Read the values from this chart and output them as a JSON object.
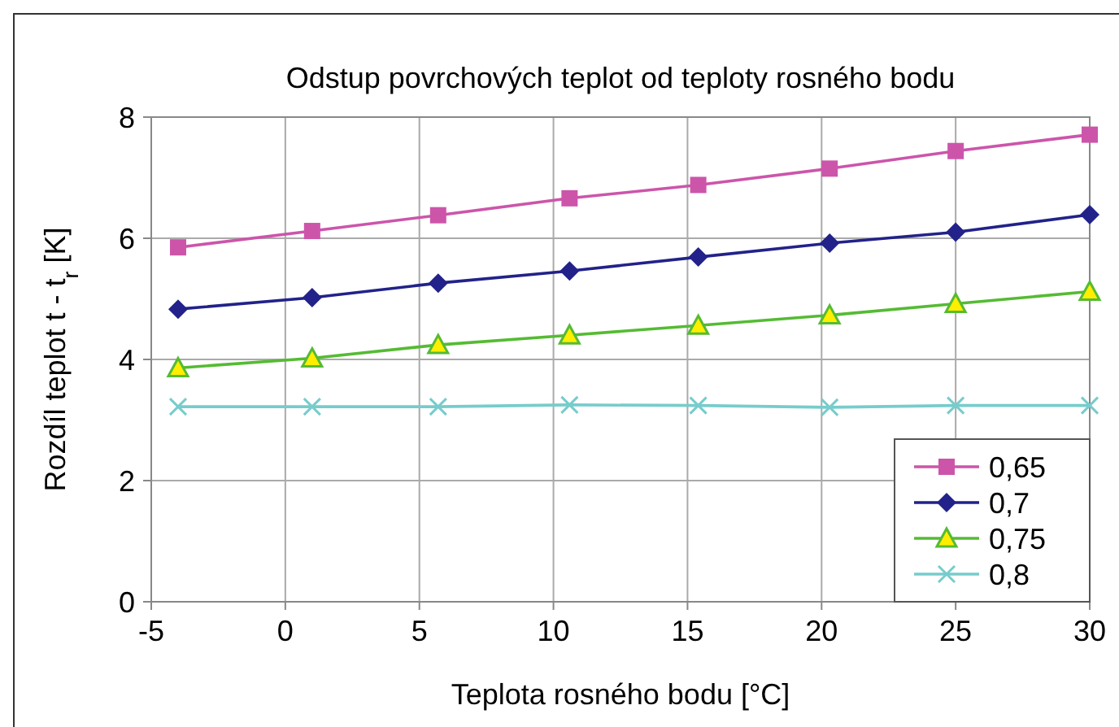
{
  "chart_data": {
    "type": "line",
    "title": "Odstup povrchových teplot od teploty rosného bodu",
    "xlabel": "Teplota rosného bodu [°C]",
    "ylabel": "Rozdíl teplot t - t$_{r}$  [K]",
    "x": [
      -4,
      1,
      5.7,
      10.6,
      15.4,
      20.3,
      25,
      30
    ],
    "xlim": [
      -5,
      30
    ],
    "xticks": [
      -5,
      0,
      5,
      10,
      15,
      20,
      25,
      30
    ],
    "ylim": [
      0,
      8
    ],
    "yticks": [
      0,
      2,
      4,
      6,
      8
    ],
    "grid": true,
    "legend": "bottom right",
    "series": [
      {
        "name": "0,65",
        "color": "#cc55aa",
        "marker": "square",
        "values": [
          5.85,
          6.12,
          6.38,
          6.66,
          6.88,
          7.15,
          7.44,
          7.71
        ]
      },
      {
        "name": "0,7",
        "color": "#22228a",
        "marker": "diamond",
        "values": [
          4.83,
          5.02,
          5.26,
          5.46,
          5.69,
          5.92,
          6.1,
          6.39
        ]
      },
      {
        "name": "0,75",
        "color": "#55bb33",
        "marker": "triangle",
        "values": [
          3.86,
          4.02,
          4.24,
          4.4,
          4.56,
          4.73,
          4.92,
          5.12
        ]
      },
      {
        "name": "0,8",
        "color": "#77cccc",
        "marker": "cross",
        "values": [
          3.22,
          3.22,
          3.22,
          3.25,
          3.24,
          3.21,
          3.24,
          3.24
        ]
      }
    ]
  }
}
